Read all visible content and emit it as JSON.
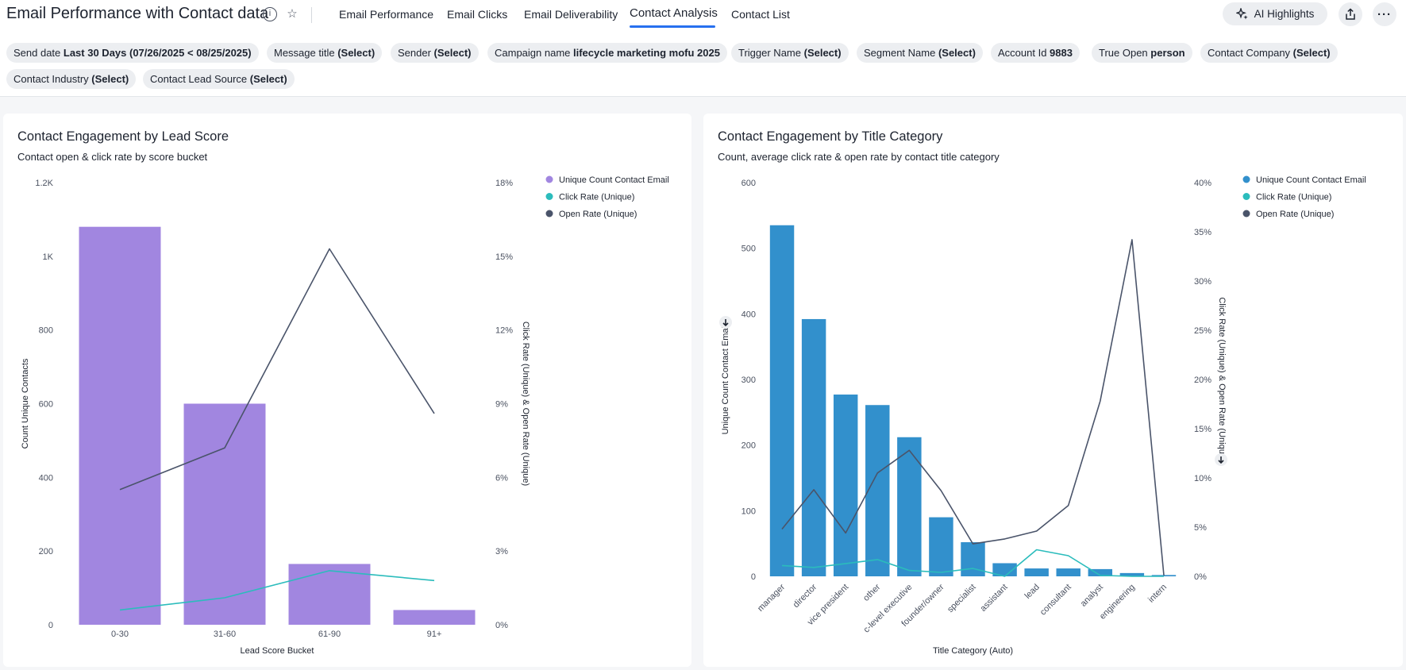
{
  "header": {
    "title": "Email Performance with Contact data",
    "tabs": [
      {
        "label": "Email Performance"
      },
      {
        "label": "Email Clicks"
      },
      {
        "label": "Email Deliverability"
      },
      {
        "label": "Contact Analysis"
      },
      {
        "label": "Contact List"
      }
    ],
    "active_tab": "Contact Analysis",
    "ai_button": "AI Highlights"
  },
  "filters": [
    {
      "label": "Send date",
      "value": "Last 30 Days (07/26/2025 < 08/25/2025)"
    },
    {
      "label": "Message title",
      "value": "(Select)"
    },
    {
      "label": "Sender",
      "value": "(Select)"
    },
    {
      "label": "Campaign name",
      "value": "lifecycle marketing mofu 2025"
    },
    {
      "label": "Trigger Name",
      "value": "(Select)"
    },
    {
      "label": "Segment Name",
      "value": "(Select)"
    },
    {
      "label": "Account Id",
      "value": "9883"
    },
    {
      "label": "True Open",
      "value": "person"
    },
    {
      "label": "Contact Company",
      "value": "(Select)"
    },
    {
      "label": "Contact Industry",
      "value": "(Select)"
    },
    {
      "label": "Contact Lead Source",
      "value": "(Select)"
    }
  ],
  "panels": {
    "left": {
      "title": "Contact Engagement by Lead Score",
      "subtitle": "Contact open & click rate by score bucket"
    },
    "right": {
      "title": "Contact Engagement by Title Category",
      "subtitle": "Count, average click rate & open rate by contact title category"
    }
  },
  "chart_data": [
    {
      "type": "bar",
      "xlabel": "Lead Score Bucket",
      "ylabel": "Count Unique Contacts",
      "y2label": "Click Rate (Unique) & Open Rate (Unique)",
      "categories": [
        "0-30",
        "31-60",
        "61-90",
        "91+"
      ],
      "ylim": [
        0,
        1200
      ],
      "yticks": [
        "0",
        "200",
        "400",
        "600",
        "800",
        "1K",
        "1.2K"
      ],
      "y2lim": [
        0,
        18
      ],
      "y2ticks": [
        "0%",
        "3%",
        "6%",
        "9%",
        "12%",
        "15%",
        "18%"
      ],
      "legend_position": "right",
      "series": [
        {
          "name": "Unique Count Contact Email",
          "type": "bar",
          "axis": "left",
          "color": "#a186e0",
          "values": [
            1080,
            600,
            165,
            40
          ]
        },
        {
          "name": "Click Rate (Unique)",
          "type": "line",
          "axis": "right",
          "color": "#2bbcbc",
          "values": [
            0.6,
            1.1,
            2.2,
            1.8
          ]
        },
        {
          "name": "Open Rate (Unique)",
          "type": "line",
          "axis": "right",
          "color": "#4a546a",
          "values": [
            5.5,
            7.2,
            15.3,
            8.6
          ]
        }
      ]
    },
    {
      "type": "bar",
      "xlabel": "Title Category (Auto)",
      "ylabel": "Unique Count Contact Email",
      "y2label": "Click Rate (Unique) & Open Rate (Unique)",
      "categories": [
        "manager",
        "director",
        "vice president",
        "other",
        "c-level executive",
        "founder/owner",
        "specialist",
        "assistant",
        "lead",
        "consultant",
        "analyst",
        "engineering",
        "intern"
      ],
      "ylim": [
        0,
        600
      ],
      "yticks": [
        "0",
        "100",
        "200",
        "300",
        "400",
        "500",
        "600"
      ],
      "y2lim": [
        0,
        40
      ],
      "y2ticks": [
        "0%",
        "5%",
        "10%",
        "15%",
        "20%",
        "25%",
        "30%",
        "35%",
        "40%"
      ],
      "legend_position": "right",
      "series": [
        {
          "name": "Unique Count Contact Email",
          "type": "bar",
          "axis": "left",
          "color": "#3290cc",
          "values": [
            535,
            392,
            277,
            261,
            212,
            90,
            52,
            20,
            12,
            12,
            11,
            5,
            2
          ]
        },
        {
          "name": "Click Rate (Unique)",
          "type": "line",
          "axis": "right",
          "color": "#2bbcbc",
          "values": [
            1.1,
            0.9,
            1.3,
            1.7,
            0.6,
            0.4,
            0.8,
            0.0,
            2.7,
            2.1,
            0.1,
            0.0,
            0.0
          ]
        },
        {
          "name": "Open Rate (Unique)",
          "type": "line",
          "axis": "right",
          "color": "#4a546a",
          "values": [
            4.8,
            8.8,
            4.4,
            10.5,
            12.8,
            8.7,
            3.3,
            3.8,
            4.6,
            7.2,
            17.8,
            34.2,
            0.1
          ]
        }
      ]
    }
  ]
}
